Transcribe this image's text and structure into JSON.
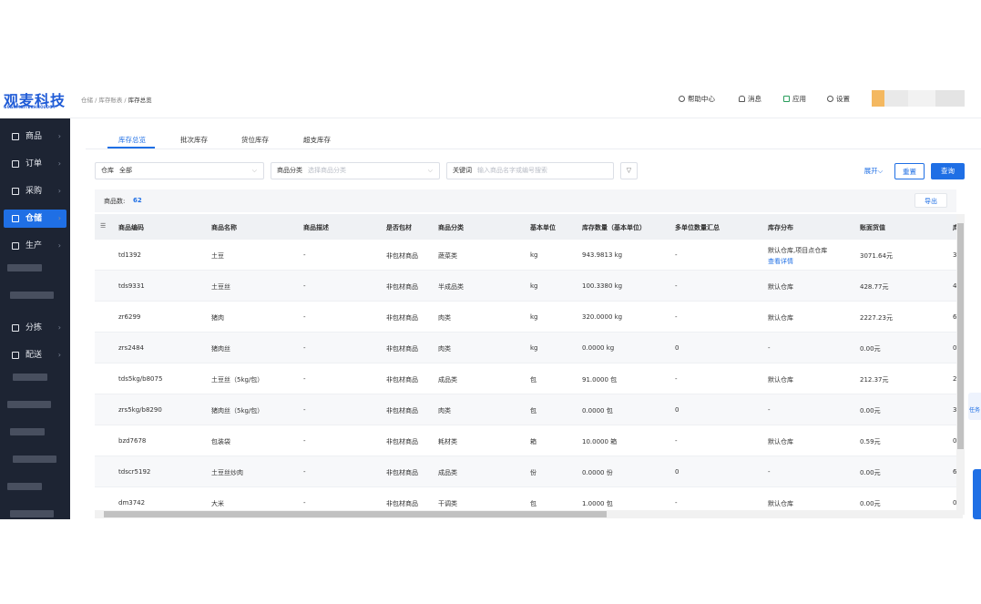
{
  "header": {
    "logo": "观麦科技",
    "logo_sub": "GUANMAITECHNOLOGY",
    "breadcrumb": [
      "仓储",
      "库存账表",
      "库存总览"
    ],
    "actions": [
      "帮助中心",
      "消息",
      "应用",
      "设置"
    ]
  },
  "sidebar": {
    "items": [
      "商品",
      "订单",
      "采购",
      "仓储",
      "生产",
      "分拣",
      "配送"
    ],
    "active": "仓储"
  },
  "tabs": {
    "items": [
      "库存总览",
      "批次库存",
      "货位库存",
      "超支库存"
    ],
    "active": "库存总览"
  },
  "filters": {
    "warehouse_label": "仓库",
    "warehouse_value": "全部",
    "category_label": "商品分类",
    "category_placeholder": "选择商品分类",
    "keyword_label": "关键词",
    "keyword_placeholder": "输入商品名字或编号搜索",
    "expand": "展开",
    "reset": "重置",
    "search": "查询"
  },
  "summary": {
    "label": "商品数:",
    "count": 62,
    "export": "导出"
  },
  "table": {
    "columns": [
      "商品编码",
      "商品名称",
      "商品描述",
      "是否包材",
      "商品分类",
      "基本单位",
      "库存数量（基本单位）",
      "多单位数量汇总",
      "库存分布",
      "账面货值",
      "库"
    ],
    "rows": [
      {
        "cells": [
          "td1392",
          "土豆",
          "-",
          "非包材商品",
          "蔬菜类",
          "kg",
          "943.9813 kg",
          "-",
          "默认仓库,项目点仓库",
          "3071.64元",
          "3"
        ],
        "detail_link": "查看详情"
      },
      {
        "cells": [
          "tds9331",
          "土豆丝",
          "-",
          "非包材商品",
          "半成品类",
          "kg",
          "100.3380 kg",
          "-",
          "默认仓库",
          "428.77元",
          "4"
        ]
      },
      {
        "cells": [
          "zr6299",
          "猪肉",
          "-",
          "非包材商品",
          "肉类",
          "kg",
          "320.0000 kg",
          "-",
          "默认仓库",
          "2227.23元",
          "6"
        ]
      },
      {
        "cells": [
          "zrs2484",
          "猪肉丝",
          "-",
          "非包材商品",
          "肉类",
          "kg",
          "0.0000 kg",
          "0",
          "-",
          "0.00元",
          "0"
        ]
      },
      {
        "cells": [
          "tds5kg/b8075",
          "土豆丝（5kg/包）",
          "-",
          "非包材商品",
          "成品类",
          "包",
          "91.0000 包",
          "-",
          "默认仓库",
          "212.37元",
          "2"
        ]
      },
      {
        "cells": [
          "zrs5kg/b8290",
          "猪肉丝（5kg/包）",
          "-",
          "非包材商品",
          "肉类",
          "包",
          "0.0000 包",
          "0",
          "-",
          "0.00元",
          "3"
        ]
      },
      {
        "cells": [
          "bzd7678",
          "包装袋",
          "-",
          "非包材商品",
          "耗材类",
          "箱",
          "10.0000 箱",
          "-",
          "默认仓库",
          "0.59元",
          "0"
        ]
      },
      {
        "cells": [
          "tdscr5192",
          "土豆丝炒肉",
          "-",
          "非包材商品",
          "成品类",
          "份",
          "0.0000 份",
          "0",
          "-",
          "0.00元",
          "6"
        ]
      },
      {
        "cells": [
          "dm3742",
          "大米",
          "-",
          "非包材商品",
          "干调类",
          "包",
          "1.0000 包",
          "-",
          "默认仓库",
          "0.00元",
          "0"
        ]
      }
    ]
  },
  "float_widget": "任务"
}
